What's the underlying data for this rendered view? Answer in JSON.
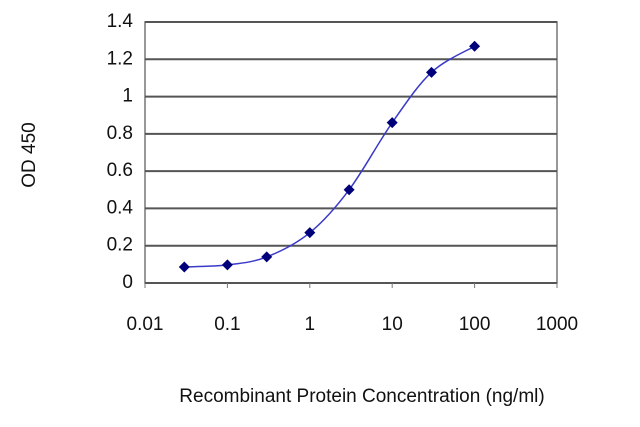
{
  "chart_data": {
    "type": "scatter-line",
    "x_label": "Recombinant Protein Concentration (ng/ml)",
    "y_label": "OD 450",
    "x": [
      0.03,
      0.1,
      0.3,
      1,
      3,
      10,
      30,
      100
    ],
    "values": [
      0.086,
      0.097,
      0.14,
      0.27,
      0.5,
      0.86,
      1.13,
      1.27
    ],
    "line_color": "#3a3ac8",
    "marker_color": "#00007a",
    "xscale": "log",
    "xlim": [
      0.01,
      1000
    ],
    "xticks": [
      0.01,
      0.1,
      1,
      10,
      100,
      1000
    ],
    "ylim": [
      0,
      1.4
    ],
    "yticks": [
      0,
      0.2,
      0.4,
      0.6,
      0.8,
      1,
      1.2,
      1.4
    ],
    "grid": true
  }
}
